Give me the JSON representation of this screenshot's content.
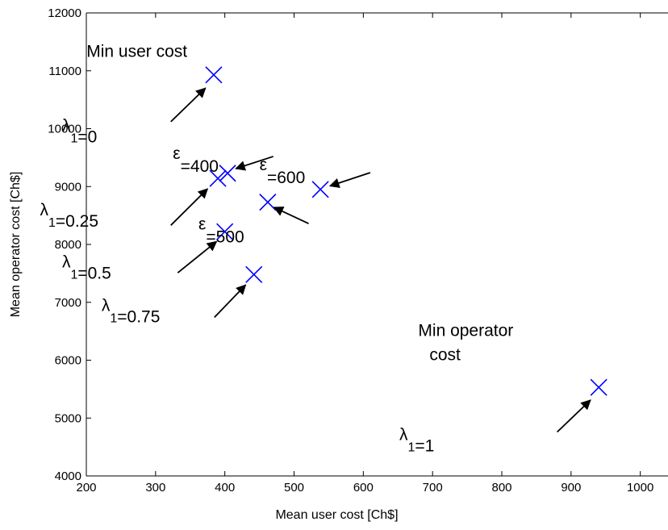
{
  "chart_data": {
    "type": "scatter",
    "xlabel": "Mean user cost [Ch$]",
    "ylabel": "Mean operator cost [Ch$]",
    "xlim": [
      200,
      1040
    ],
    "ylim": [
      4000,
      12000
    ],
    "grid": false,
    "x_ticks": [
      200,
      300,
      400,
      500,
      600,
      700,
      800,
      900,
      1000
    ],
    "y_ticks": [
      4000,
      5000,
      6000,
      7000,
      8000,
      9000,
      10000,
      11000,
      12000
    ],
    "marker": "x",
    "marker_color": "#0000ff",
    "points": [
      {
        "x": 384,
        "y": 10930
      },
      {
        "x": 390,
        "y": 9140
      },
      {
        "x": 404,
        "y": 9230
      },
      {
        "x": 400,
        "y": 8220
      },
      {
        "x": 462,
        "y": 8730
      },
      {
        "x": 442,
        "y": 7480
      },
      {
        "x": 538,
        "y": 8950
      },
      {
        "x": 940,
        "y": 5530
      }
    ],
    "annotations": [
      {
        "greek": "λ",
        "sub": "1",
        "rest": "=0",
        "text_x": 165,
        "text_y": 9960,
        "tip_x": 372,
        "tip_y": 10700,
        "tail_x": 322,
        "tail_y": 10120
      },
      {
        "greek": "λ",
        "sub": "1",
        "rest": "=0.25",
        "text_x": 133,
        "text_y": 8500,
        "tip_x": 375,
        "tip_y": 8960,
        "tail_x": 322,
        "tail_y": 8330
      },
      {
        "greek": "λ",
        "sub": "1",
        "rest": "=0.5",
        "text_x": 165,
        "text_y": 7600,
        "tip_x": 388,
        "tip_y": 8050,
        "tail_x": 332,
        "tail_y": 7510
      },
      {
        "greek": "λ",
        "sub": "1",
        "rest": "=0.75",
        "text_x": 222,
        "text_y": 6850,
        "tip_x": 430,
        "tip_y": 7300,
        "tail_x": 385,
        "tail_y": 6740
      },
      {
        "greek": "λ",
        "sub": "1",
        "rest": "=1",
        "text_x": 652,
        "text_y": 4620,
        "tip_x": 928,
        "tip_y": 5310,
        "tail_x": 880,
        "tail_y": 4760
      },
      {
        "greek": "ε",
        "sub": "",
        "rest": "=400",
        "text_x": 325,
        "text_y": 9480,
        "tip_x": 416,
        "tip_y": 9310,
        "tail_x": 470,
        "tail_y": 9520
      },
      {
        "greek": "ε",
        "sub": "",
        "rest": "=500",
        "text_x": 362,
        "text_y": 8260,
        "tip_x": 471,
        "tip_y": 8640,
        "tail_x": 521,
        "tail_y": 8360
      },
      {
        "greek": "ε",
        "sub": "",
        "rest": "=600",
        "text_x": 450,
        "text_y": 9280,
        "tip_x": 552,
        "tip_y": 9010,
        "tail_x": 610,
        "tail_y": 9240
      }
    ],
    "labels": [
      {
        "text": "Min user cost",
        "x": 273,
        "y": 11240,
        "anchor": "middle"
      },
      {
        "text": "Min operator",
        "x": 748,
        "y": 6420,
        "anchor": "middle"
      },
      {
        "text": "cost",
        "x": 718,
        "y": 6000,
        "anchor": "middle"
      }
    ]
  }
}
